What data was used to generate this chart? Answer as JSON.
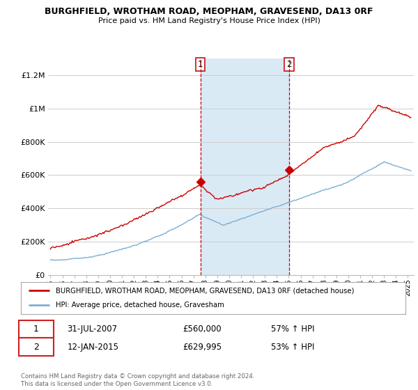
{
  "title": "BURGHFIELD, WROTHAM ROAD, MEOPHAM, GRAVESEND, DA13 0RF",
  "subtitle": "Price paid vs. HM Land Registry's House Price Index (HPI)",
  "ylim": [
    0,
    1300000
  ],
  "xlim_start": 1994.8,
  "xlim_end": 2025.5,
  "grid_color": "#cccccc",
  "red_line_color": "#cc0000",
  "blue_line_color": "#7bafd4",
  "shade_color": "#daeaf5",
  "marker1_x": 2007.58,
  "marker2_x": 2015.04,
  "legend_red": "BURGHFIELD, WROTHAM ROAD, MEOPHAM, GRAVESEND, DA13 0RF (detached house)",
  "legend_blue": "HPI: Average price, detached house, Gravesham",
  "table_row1_date": "31-JUL-2007",
  "table_row1_price": "£560,000",
  "table_row1_hpi": "57% ↑ HPI",
  "table_row2_date": "12-JAN-2015",
  "table_row2_price": "£629,995",
  "table_row2_hpi": "53% ↑ HPI",
  "footer": "Contains HM Land Registry data © Crown copyright and database right 2024.\nThis data is licensed under the Open Government Licence v3.0.",
  "yticks": [
    0,
    200000,
    400000,
    600000,
    800000,
    1000000,
    1200000
  ],
  "ytick_labels": [
    "£0",
    "£200K",
    "£400K",
    "£600K",
    "£800K",
    "£1M",
    "£1.2M"
  ]
}
